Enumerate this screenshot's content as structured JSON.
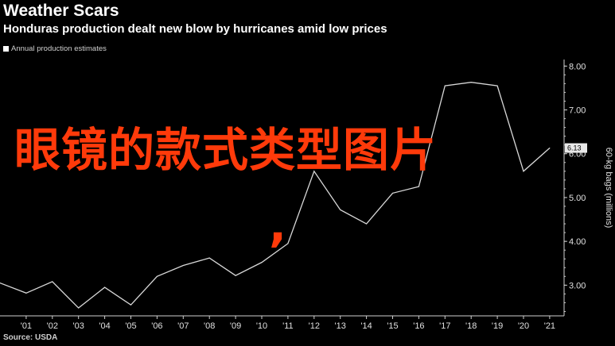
{
  "header": {
    "title": "Weather Scars",
    "subtitle": "Honduras production dealt new blow by hurricanes amid low prices"
  },
  "legend": {
    "label": "Annual production estimates"
  },
  "source": "Source: USDA",
  "overlay": {
    "text": "眼镜的款式类型图片",
    "comma": ","
  },
  "chart_data": {
    "type": "line",
    "title": "Weather Scars",
    "subtitle": "Honduras production dealt new blow by hurricanes amid low prices",
    "xlabel": "",
    "ylabel": "60-kg bags (millions)",
    "x": [
      2000,
      2001,
      2002,
      2003,
      2004,
      2005,
      2006,
      2007,
      2008,
      2009,
      2010,
      2011,
      2012,
      2013,
      2014,
      2015,
      2016,
      2017,
      2018,
      2019,
      2020,
      2021
    ],
    "x_tick_labels": [
      "'01",
      "'02",
      "'03",
      "'04",
      "'05",
      "'06",
      "'07",
      "'08",
      "'09",
      "'10",
      "'11",
      "'12",
      "'13",
      "'14",
      "'15",
      "'16",
      "'17",
      "'18",
      "'19",
      "'20",
      "'21"
    ],
    "series": [
      {
        "name": "Annual production estimates",
        "values": [
          3.05,
          2.82,
          3.08,
          2.48,
          2.95,
          2.55,
          3.2,
          3.45,
          3.62,
          3.22,
          3.52,
          3.95,
          5.6,
          4.72,
          4.4,
          5.1,
          5.25,
          7.55,
          7.63,
          7.55,
          5.6,
          6.13
        ]
      }
    ],
    "yticks": [
      3.0,
      4.0,
      5.0,
      6.0,
      7.0,
      8.0
    ],
    "ytick_labels": [
      "3.00",
      "4.00",
      "5.00",
      "6.00",
      "7.00",
      "8.00"
    ],
    "last_value_label": "6.13",
    "ylim": [
      2.3,
      8.15
    ],
    "legend_position": "top-left",
    "grid": false,
    "colors": {
      "line": "#d8d8d8",
      "background": "#000000",
      "axis": "#cfcfcf"
    }
  }
}
